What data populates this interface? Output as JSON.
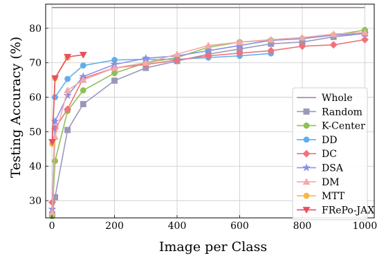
{
  "chart_data": {
    "type": "line",
    "title": "",
    "xlabel": "Image per Class",
    "ylabel": "Testing Accuracy (%)",
    "xlim": [
      -20,
      1030
    ],
    "ylim": [
      25,
      87
    ],
    "xticks": [
      0,
      200,
      400,
      600,
      800,
      1000
    ],
    "yticks": [
      30,
      40,
      50,
      60,
      70,
      80
    ],
    "grid": true,
    "legend_position": "bottom-right",
    "series": [
      {
        "name": "Whole",
        "color": "#9e7fa0",
        "marker": "none",
        "x": [
          0,
          1000
        ],
        "y": [
          86,
          86
        ]
      },
      {
        "name": "Random",
        "color": "#9a98ba",
        "marker": "square",
        "x": [
          1,
          10,
          50,
          100,
          200,
          300,
          400,
          500,
          600,
          700,
          800,
          900,
          1000
        ],
        "y": [
          26,
          31,
          50.5,
          58,
          64.8,
          68.5,
          70.5,
          72.5,
          74,
          75.5,
          76,
          77.5,
          78.5
        ]
      },
      {
        "name": "K-Center",
        "color": "#8fc056",
        "marker": "circle",
        "x": [
          1,
          10,
          50,
          100,
          200,
          300,
          400,
          500,
          600,
          700,
          800,
          900,
          1000
        ],
        "y": [
          25.5,
          41.5,
          56,
          62,
          67,
          70,
          71.5,
          74.5,
          76,
          76.5,
          77,
          78,
          79.5
        ]
      },
      {
        "name": "DD",
        "color": "#63aeea",
        "marker": "circle",
        "x": [
          10,
          50,
          100,
          200,
          300,
          400,
          500,
          600,
          700
        ],
        "y": [
          60,
          65.3,
          69.2,
          70.8,
          71,
          71,
          71.5,
          72,
          72.7
        ]
      },
      {
        "name": "DC",
        "color": "#f0727a",
        "marker": "diamond",
        "x": [
          1,
          10,
          50,
          100,
          200,
          300,
          400,
          500,
          600,
          700,
          800,
          900,
          1000
        ],
        "y": [
          29.5,
          51,
          56.5,
          65.5,
          68.5,
          69.5,
          70.8,
          72,
          72.8,
          73.5,
          74.8,
          75.2,
          76.7
        ]
      },
      {
        "name": "DSA",
        "color": "#8a8ee6",
        "marker": "star",
        "x": [
          1,
          10,
          50,
          100,
          200,
          300,
          400,
          500,
          600,
          700,
          800,
          900,
          1000
        ],
        "y": [
          27.5,
          53,
          60.5,
          66,
          69.5,
          71.3,
          72,
          73.5,
          75,
          76.5,
          77,
          78,
          78.5
        ]
      },
      {
        "name": "DM",
        "color": "#f2aaa8",
        "marker": "triangle-up",
        "x": [
          1,
          10,
          50,
          100,
          200,
          300,
          400,
          500,
          600,
          700,
          800,
          900,
          1000
        ],
        "y": [
          26.5,
          48.5,
          62,
          65,
          68.5,
          70,
          72.5,
          75,
          76,
          76.7,
          77.3,
          78.3,
          78.8
        ]
      },
      {
        "name": "MTT",
        "color": "#f7b84a",
        "marker": "circle",
        "x": [
          1,
          10,
          50
        ],
        "y": [
          46.5,
          65.5,
          71.5
        ]
      },
      {
        "name": "FRePo-JAX",
        "color": "#e8505f",
        "marker": "triangle-down",
        "x": [
          1,
          10,
          50,
          100
        ],
        "y": [
          47,
          65.5,
          71.7,
          72.3
        ]
      }
    ]
  }
}
